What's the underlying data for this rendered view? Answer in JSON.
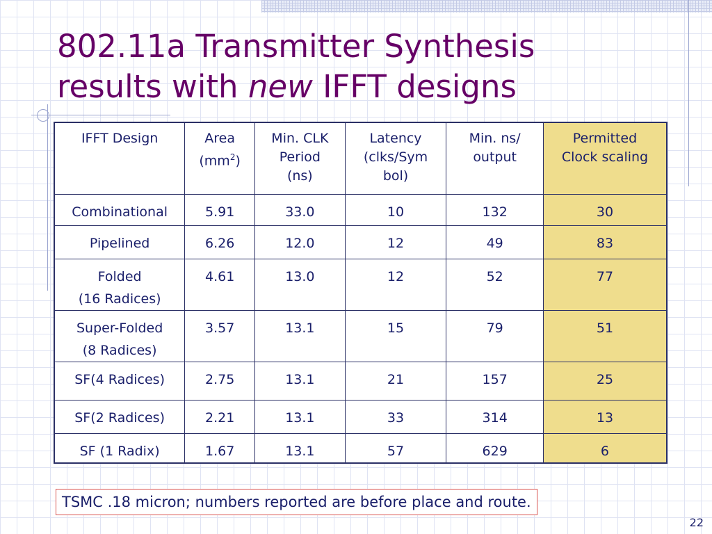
{
  "slide": {
    "title_line1": "802.11a Transmitter Synthesis",
    "title_line2_pre": "results with ",
    "title_line2_em": "new",
    "title_line2_post": " IFFT designs",
    "page_number": "22",
    "note": "TSMC .18 micron; numbers reported are before place and route."
  },
  "table": {
    "headers": [
      {
        "lines": [
          "IFFT Design"
        ]
      },
      {
        "lines": [
          "Area",
          "(mm"
        ],
        "sup": "2",
        "after_sup": ")"
      },
      {
        "lines": [
          "Min. CLK",
          "Period",
          "(ns)"
        ]
      },
      {
        "lines": [
          "Latency",
          "(clks/Sym",
          "bol)"
        ]
      },
      {
        "lines": [
          "Min. ns/",
          "output"
        ]
      },
      {
        "lines": [
          "Permitted",
          "Clock scaling"
        ]
      }
    ],
    "rows": [
      {
        "design": [
          "Combinational"
        ],
        "area": "5.91",
        "clk": "33.0",
        "latency": "10",
        "ns_output": "132",
        "scaling": "30"
      },
      {
        "design": [
          "Pipelined"
        ],
        "area": "6.26",
        "clk": "12.0",
        "latency": "12",
        "ns_output": "49",
        "scaling": "83"
      },
      {
        "design": [
          "Folded",
          "(16 Radices)"
        ],
        "area": "4.61",
        "clk": "13.0",
        "latency": "12",
        "ns_output": "52",
        "scaling": "77"
      },
      {
        "design": [
          "Super-Folded",
          "(8 Radices)"
        ],
        "area": "3.57",
        "clk": "13.1",
        "latency": "15",
        "ns_output": "79",
        "scaling": "51"
      },
      {
        "design": [
          "SF(4 Radices)"
        ],
        "area": "2.75",
        "clk": "13.1",
        "latency": "21",
        "ns_output": "157",
        "scaling": "25"
      },
      {
        "design": [
          "SF(2 Radices)"
        ],
        "area": "2.21",
        "clk": "13.1",
        "latency": "33",
        "ns_output": "314",
        "scaling": "13"
      },
      {
        "design": [
          "SF (1 Radix)"
        ],
        "area": "1.67",
        "clk": "13.1",
        "latency": "57",
        "ns_output": "629",
        "scaling": "6"
      }
    ]
  },
  "colors": {
    "title": "#660066",
    "text": "#1a1f6a",
    "highlight_column": "#efdd8d",
    "note_border": "#d9534f"
  }
}
